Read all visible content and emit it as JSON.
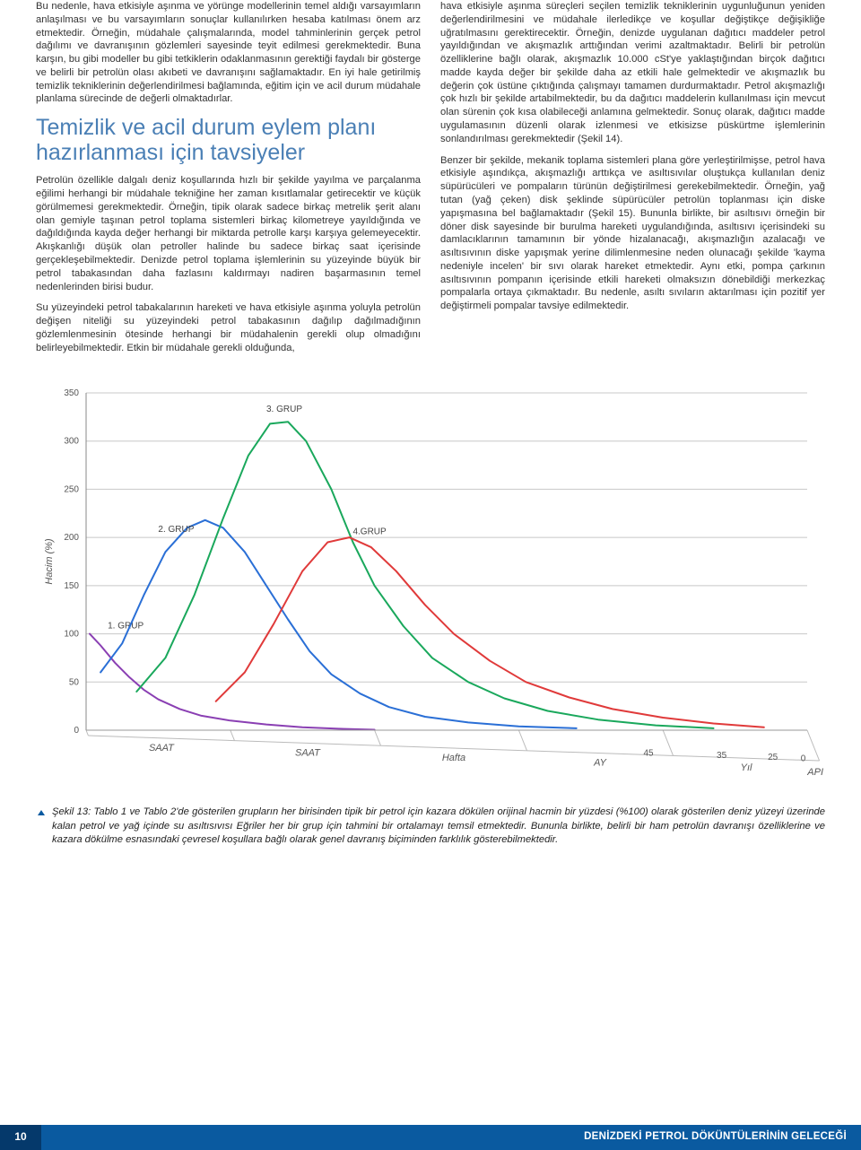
{
  "left_column": {
    "p1": "Bu nedenle, hava etkisiyle aşınma ve yörünge modellerinin temel aldığı varsayımların anlaşılması ve bu varsayımların sonuçlar kullanılırken hesaba katılması önem arz etmektedir. Örneğin, müdahale çalışmalarında, model tahminlerinin gerçek petrol dağılımı ve davranışının gözlemleri sayesinde teyit edilmesi gerekmektedir. Buna karşın, bu gibi modeller bu gibi tetkiklerin odaklanmasının gerektiği faydalı bir gösterge ve belirli bir petrolün olası akıbeti ve davranışını sağlamaktadır. En iyi hale getirilmiş temizlik tekniklerinin değerlendirilmesi bağlamında, eğitim için ve acil durum müdahale planlama sürecinde de değerli olmaktadırlar.",
    "section_title": "Temizlik ve acil durum eylem planı hazırlanması için tavsiyeler",
    "p2": "Petrolün özellikle dalgalı deniz koşullarında hızlı bir şekilde yayılma ve parçalanma eğilimi herhangi bir müdahale tekniğine her zaman kısıtlamalar getirecektir ve küçük görülmemesi gerekmektedir. Örneğin, tipik olarak sadece birkaç metrelik şerit alanı olan gemiyle taşınan petrol toplama sistemleri birkaç kilometreye yayıldığında ve dağıldığında kayda değer herhangi bir miktarda petrolle karşı karşıya gelemeyecektir. Akışkanlığı düşük olan petroller halinde bu sadece birkaç saat içerisinde gerçekleşebilmektedir. Denizde petrol toplama işlemlerinin su yüzeyinde büyük bir petrol tabakasından daha fazlasını kaldırmayı nadiren başarmasının temel nedenlerinden birisi budur.",
    "p3": "Su yüzeyindeki petrol tabakalarının hareketi ve hava etkisiyle aşınma yoluyla petrolün değişen niteliği su yüzeyindeki petrol tabakasının dağılıp dağılmadığının gözlemlenmesinin ötesinde herhangi bir müdahalenin gerekli olup olmadığını belirleyebilmektedir. Etkin bir müdahale gerekli olduğunda,"
  },
  "right_column": {
    "p1": "hava etkisiyle aşınma süreçleri seçilen temizlik tekniklerinin uygunluğunun yeniden değerlendirilmesini ve müdahale ilerledikçe ve koşullar değiştikçe değişikliğe uğratılmasını gerektirecektir. Örneğin, denizde uygulanan dağıtıcı maddeler petrol yayıldığından ve akışmazlık arttığından verimi azaltmaktadır. Belirli bir petrolün özelliklerine bağlı olarak, akışmazlık 10.000 cSt'ye yaklaştığından birçok dağıtıcı madde kayda değer bir şekilde daha az etkili hale gelmektedir ve akışmazlık bu değerin çok üstüne çıktığında çalışmayı tamamen durdurmaktadır. Petrol akışmazlığı çok hızlı bir şekilde artabilmektedir, bu da dağıtıcı maddelerin kullanılması için mevcut olan sürenin çok kısa olabileceği anlamına gelmektedir. Sonuç olarak, dağıtıcı madde uygulamasının düzenli olarak izlenmesi ve etkisizse püskürtme işlemlerinin sonlandırılması gerekmektedir (Şekil 14).",
    "p2": "Benzer bir şekilde, mekanik toplama sistemleri plana göre yerleştirilmişse, petrol hava etkisiyle aşındıkça, akışmazlığı arttıkça ve asıltısıvılar oluştukça kullanılan deniz süpürücüleri ve pompaların türünün değiştirilmesi gerekebilmektedir. Örneğin, yağ tutan (yağ çeken) disk şeklinde süpürücüler petrolün toplanması için diske yapışmasına bel bağlamaktadır (Şekil 15). Bununla birlikte, bir asıltısıvı örneğin bir döner disk sayesinde bir burulma hareketi uygulandığında, asıltısıvı içerisindeki su damlacıklarının tamamının bir yönde hizalanacağı, akışmazlığın azalacağı ve asıltısıvının diske yapışmak yerine dilimlenmesine neden olunacağı şekilde 'kayma nedeniyle incelen' bir sıvı olarak hareket etmektedir. Aynı etki, pompa çarkının asıltısıvının pompanın içerisinde etkili hareketi olmaksızın dönebildiği merkezkaç pompalarla ortaya çıkmaktadır. Bu nedenle, asıltı sıvıların aktarılması için pozitif yer değiştirmeli pompalar tavsiye edilmektedir."
  },
  "caption": "Şekil 13: Tablo 1 ve Tablo 2'de gösterilen grupların her birisinden tipik bir petrol için kazara dökülen orijinal hacmin bir yüzdesi (%100) olarak gösterilen deniz yüzeyi üzerinde kalan petrol ve yağ içinde su asıltısıvısı Eğriler her bir grup için tahmini bir ortalamayı temsil etmektedir. Bununla birlikte, belirli bir ham petrolün davranışı özelliklerine ve kazara dökülme esnasındaki çevresel koşullara bağlı olarak genel davranış biçiminden farklılık gösterebilmektedir.",
  "footer": {
    "page": "10",
    "title": "DENİZDEKİ PETROL DÖKÜNTÜLERİNİN GELECEĞİ"
  },
  "chart": {
    "type": "line",
    "background_color": "#ffffff",
    "grid_color": "#c8c8c8",
    "y_axis": {
      "label": "Hacim (%)",
      "ticks": [
        0,
        50,
        100,
        150,
        200,
        250,
        300,
        350
      ],
      "ylim": [
        0,
        350
      ],
      "tick_fontsize": 10,
      "label_fontsize": 11
    },
    "x_axis": {
      "segments": [
        {
          "label": "SAAT",
          "start": "0"
        },
        {
          "label": "SAAT",
          "start": ""
        },
        {
          "label": "Hafta",
          "start": ""
        },
        {
          "label": "AY",
          "start": ""
        },
        {
          "label": "Yıl",
          "start": ""
        }
      ],
      "api_markers": [
        {
          "x_frac": 0.73,
          "value": "45"
        },
        {
          "x_frac": 0.83,
          "value": "35"
        },
        {
          "x_frac": 0.9,
          "value": "25"
        },
        {
          "x_frac": 0.945,
          "value": "0"
        }
      ],
      "api_label": "API"
    },
    "series": [
      {
        "name": "1. GRUP",
        "color": "#8a3fb3",
        "line_width": 2,
        "label_pos": {
          "x_frac": 0.03,
          "y_val": 100
        },
        "points": [
          [
            0.005,
            100
          ],
          [
            0.02,
            88
          ],
          [
            0.04,
            70
          ],
          [
            0.06,
            55
          ],
          [
            0.08,
            42
          ],
          [
            0.1,
            32
          ],
          [
            0.13,
            22
          ],
          [
            0.16,
            15
          ],
          [
            0.2,
            10
          ],
          [
            0.25,
            6
          ],
          [
            0.3,
            3
          ],
          [
            0.35,
            1.5
          ],
          [
            0.4,
            0.5
          ]
        ]
      },
      {
        "name": "2. GRUP",
        "color": "#2a6fd6",
        "line_width": 2,
        "label_pos": {
          "x_frac": 0.1,
          "y_val": 200
        },
        "points": [
          [
            0.02,
            60
          ],
          [
            0.05,
            90
          ],
          [
            0.08,
            140
          ],
          [
            0.11,
            185
          ],
          [
            0.14,
            210
          ],
          [
            0.165,
            218
          ],
          [
            0.19,
            210
          ],
          [
            0.22,
            185
          ],
          [
            0.25,
            150
          ],
          [
            0.28,
            115
          ],
          [
            0.31,
            82
          ],
          [
            0.34,
            58
          ],
          [
            0.38,
            38
          ],
          [
            0.42,
            24
          ],
          [
            0.47,
            14
          ],
          [
            0.53,
            8
          ],
          [
            0.6,
            4
          ],
          [
            0.68,
            2
          ]
        ]
      },
      {
        "name": "3. GRUP",
        "color": "#1aa85c",
        "line_width": 2,
        "label_pos": {
          "x_frac": 0.25,
          "y_val": 325
        },
        "points": [
          [
            0.07,
            40
          ],
          [
            0.11,
            75
          ],
          [
            0.15,
            140
          ],
          [
            0.19,
            220
          ],
          [
            0.225,
            285
          ],
          [
            0.255,
            318
          ],
          [
            0.28,
            320
          ],
          [
            0.305,
            300
          ],
          [
            0.34,
            250
          ],
          [
            0.37,
            195
          ],
          [
            0.4,
            150
          ],
          [
            0.44,
            108
          ],
          [
            0.48,
            75
          ],
          [
            0.53,
            50
          ],
          [
            0.58,
            33
          ],
          [
            0.64,
            20
          ],
          [
            0.71,
            11
          ],
          [
            0.79,
            5
          ],
          [
            0.87,
            2
          ]
        ]
      },
      {
        "name": "4.GRUP",
        "color": "#e03a3a",
        "line_width": 2,
        "label_pos": {
          "x_frac": 0.37,
          "y_val": 198
        },
        "points": [
          [
            0.18,
            30
          ],
          [
            0.22,
            60
          ],
          [
            0.26,
            110
          ],
          [
            0.3,
            165
          ],
          [
            0.335,
            195
          ],
          [
            0.365,
            200
          ],
          [
            0.395,
            190
          ],
          [
            0.43,
            165
          ],
          [
            0.47,
            130
          ],
          [
            0.51,
            100
          ],
          [
            0.56,
            72
          ],
          [
            0.61,
            50
          ],
          [
            0.67,
            34
          ],
          [
            0.73,
            22
          ],
          [
            0.8,
            13
          ],
          [
            0.87,
            7
          ],
          [
            0.94,
            3
          ]
        ]
      }
    ]
  }
}
